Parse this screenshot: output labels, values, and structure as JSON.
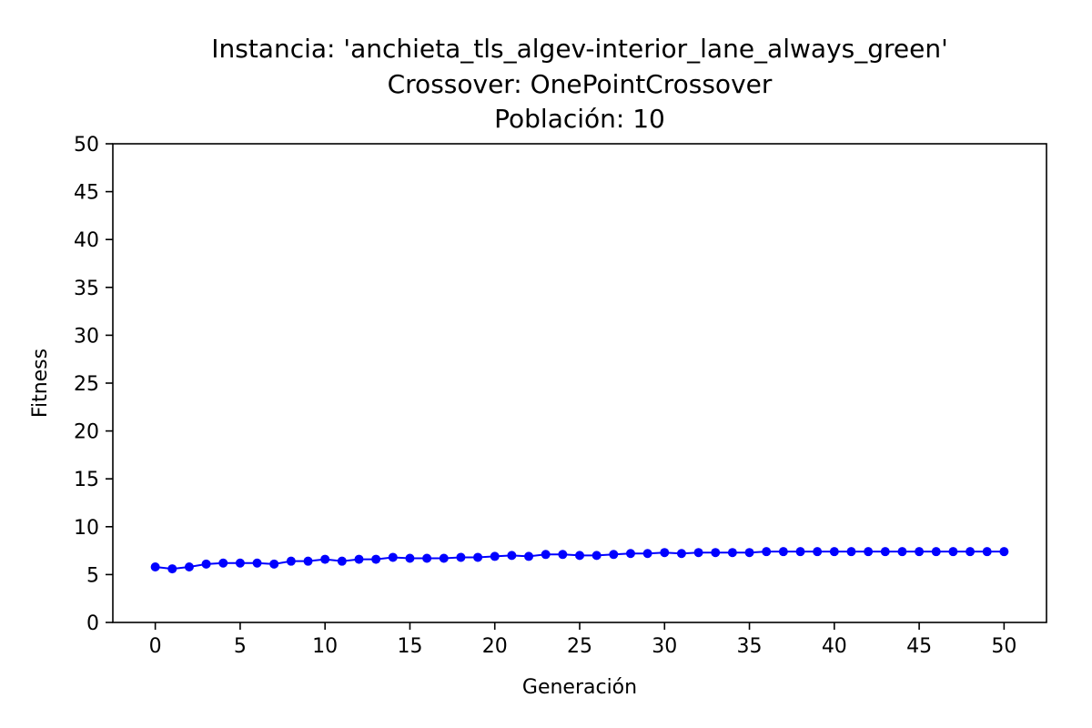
{
  "chart_data": {
    "type": "line",
    "title_lines": [
      "Instancia: 'anchieta_tls_algev-interior_lane_always_green'",
      "Crossover: OnePointCrossover",
      "Población: 10"
    ],
    "xlabel": "Generación",
    "ylabel": "Fitness",
    "xlim": [
      -2.5,
      52.5
    ],
    "ylim": [
      0,
      50
    ],
    "xticks": [
      0,
      5,
      10,
      15,
      20,
      25,
      30,
      35,
      40,
      45,
      50
    ],
    "yticks": [
      0,
      5,
      10,
      15,
      20,
      25,
      30,
      35,
      40,
      45,
      50
    ],
    "grid": false,
    "legend": "none",
    "series": [
      {
        "color": "#0000ff",
        "x": [
          0,
          1,
          2,
          3,
          4,
          5,
          6,
          7,
          8,
          9,
          10,
          11,
          12,
          13,
          14,
          15,
          16,
          17,
          18,
          19,
          20,
          21,
          22,
          23,
          24,
          25,
          26,
          27,
          28,
          29,
          30,
          31,
          32,
          33,
          34,
          35,
          36,
          37,
          38,
          39,
          40,
          41,
          42,
          43,
          44,
          45,
          46,
          47,
          48,
          49,
          50
        ],
        "y": [
          5.8,
          5.6,
          5.8,
          6.1,
          6.2,
          6.2,
          6.2,
          6.1,
          6.4,
          6.4,
          6.6,
          6.4,
          6.6,
          6.6,
          6.8,
          6.7,
          6.7,
          6.7,
          6.8,
          6.8,
          6.9,
          7.0,
          6.9,
          7.1,
          7.1,
          7.0,
          7.0,
          7.1,
          7.2,
          7.2,
          7.3,
          7.2,
          7.3,
          7.3,
          7.3,
          7.3,
          7.4,
          7.4,
          7.4,
          7.4,
          7.4,
          7.4,
          7.4,
          7.4,
          7.4,
          7.4,
          7.4,
          7.4,
          7.4,
          7.4,
          7.4
        ]
      }
    ]
  }
}
